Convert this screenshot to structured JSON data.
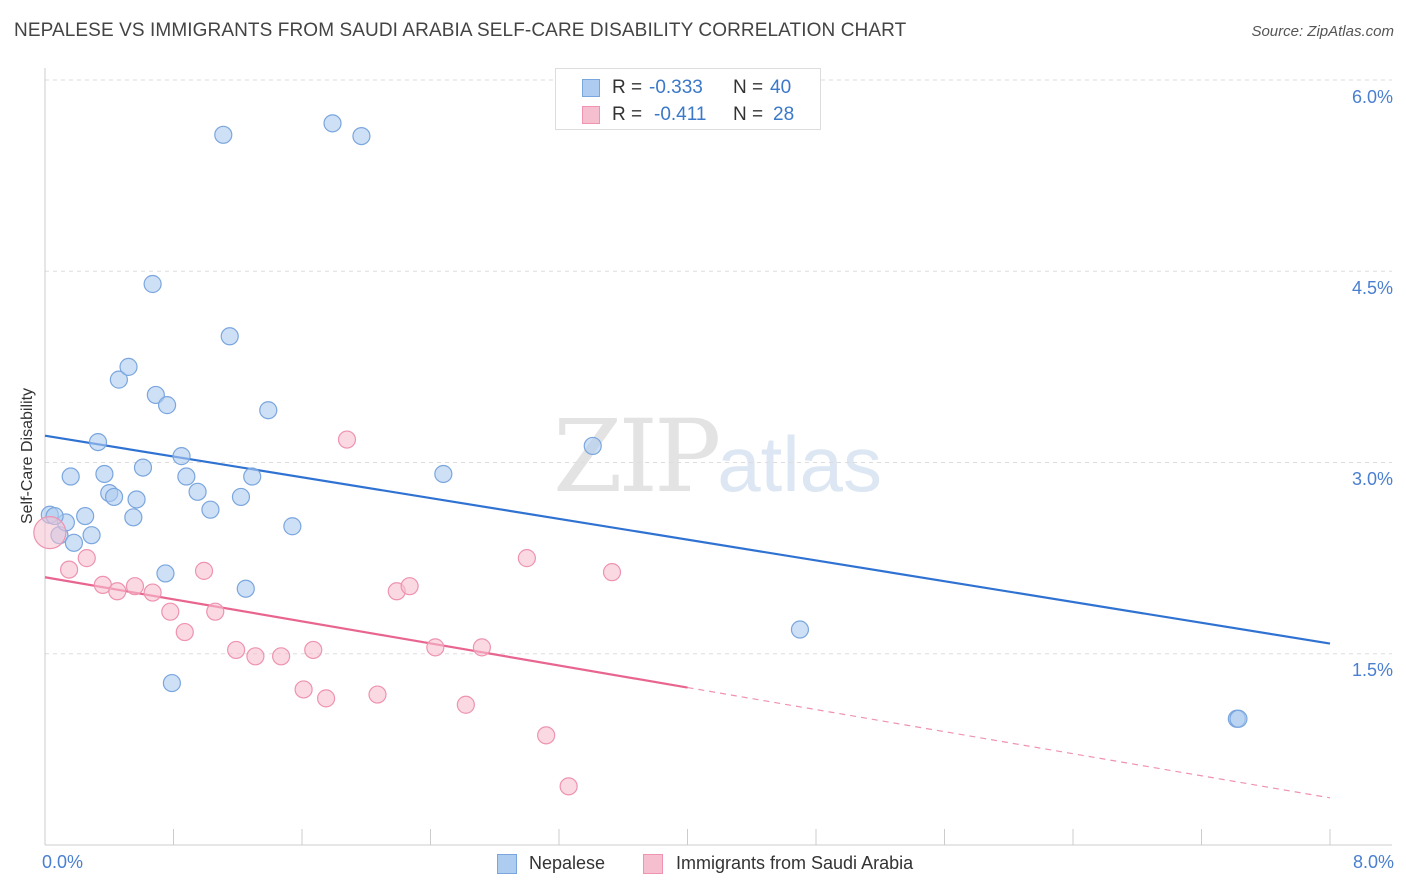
{
  "title": "NEPALESE VS IMMIGRANTS FROM SAUDI ARABIA SELF-CARE DISABILITY CORRELATION CHART",
  "source": "Source: ZipAtlas.com",
  "watermark": {
    "zip": "ZIP",
    "atlas": "atlas"
  },
  "legend": {
    "r_label": "R =",
    "n_label": "N =",
    "series1": {
      "r": "-0.333",
      "n": "40"
    },
    "series2": {
      "r": "-0.411",
      "n": "28"
    }
  },
  "colors": {
    "blue_fill": "#aecbf0",
    "blue_stroke": "#7aa6de",
    "blue_line": "#2f72d2",
    "pink_fill": "#f6bfd0",
    "pink_stroke": "#ee93b0",
    "pink_line": "#e8658f",
    "tick_text": "#4a7fd0",
    "grid": "#dddddd"
  },
  "chart_data": {
    "type": "scatter",
    "title": "NEPALESE VS IMMIGRANTS FROM SAUDI ARABIA SELF-CARE DISABILITY CORRELATION CHART",
    "xlabel": "",
    "ylabel": "Self-Care Disability",
    "xlim": [
      0,
      8
    ],
    "ylim": [
      0,
      6.2
    ],
    "x_tick_labels": [
      "0.0%",
      "8.0%"
    ],
    "y_ticks": [
      1.5,
      3.0,
      4.5,
      6.0
    ],
    "y_tick_labels": [
      "1.5%",
      "3.0%",
      "4.5%",
      "6.0%"
    ],
    "grid": true,
    "legend_position": "top-center",
    "series": [
      {
        "name": "Nepalese",
        "r": -0.333,
        "n": 40,
        "trend": {
          "x": [
            0,
            8
          ],
          "y": [
            3.21,
            1.58
          ],
          "solid_until": 8
        },
        "points": [
          [
            0.03,
            2.59
          ],
          [
            0.09,
            2.43
          ],
          [
            0.13,
            2.53
          ],
          [
            0.18,
            2.37
          ],
          [
            0.25,
            2.58
          ],
          [
            0.29,
            2.43
          ],
          [
            0.33,
            3.16
          ],
          [
            0.16,
            2.89
          ],
          [
            0.37,
            2.91
          ],
          [
            0.4,
            2.76
          ],
          [
            0.43,
            2.73
          ],
          [
            0.46,
            3.65
          ],
          [
            0.52,
            3.75
          ],
          [
            0.55,
            2.57
          ],
          [
            0.57,
            2.71
          ],
          [
            0.61,
            2.96
          ],
          [
            0.67,
            4.4
          ],
          [
            0.69,
            3.53
          ],
          [
            0.76,
            3.45
          ],
          [
            0.75,
            2.13
          ],
          [
            0.79,
            1.27
          ],
          [
            0.85,
            3.05
          ],
          [
            0.88,
            2.89
          ],
          [
            0.95,
            2.77
          ],
          [
            1.03,
            2.63
          ],
          [
            1.11,
            5.57
          ],
          [
            1.15,
            3.99
          ],
          [
            1.22,
            2.73
          ],
          [
            1.25,
            2.01
          ],
          [
            1.29,
            2.89
          ],
          [
            1.39,
            3.41
          ],
          [
            1.54,
            2.5
          ],
          [
            1.79,
            5.66
          ],
          [
            1.97,
            5.56
          ],
          [
            2.48,
            2.91
          ],
          [
            3.41,
            3.13
          ],
          [
            4.7,
            1.69
          ],
          [
            7.42,
            0.99
          ],
          [
            7.43,
            0.99
          ],
          [
            0.06,
            2.58
          ]
        ]
      },
      {
        "name": "Immigrants from Saudi Arabia",
        "r": -0.411,
        "n": 28,
        "trend": {
          "x": [
            0,
            8
          ],
          "y": [
            2.1,
            0.37
          ],
          "solid_until": 4.0
        },
        "points": [
          [
            0.03,
            2.45
          ],
          [
            0.15,
            2.16
          ],
          [
            0.26,
            2.25
          ],
          [
            0.36,
            2.04
          ],
          [
            0.45,
            1.99
          ],
          [
            0.56,
            2.03
          ],
          [
            0.67,
            1.98
          ],
          [
            0.78,
            1.83
          ],
          [
            0.87,
            1.67
          ],
          [
            0.99,
            2.15
          ],
          [
            1.06,
            1.83
          ],
          [
            1.19,
            1.53
          ],
          [
            1.31,
            1.48
          ],
          [
            1.47,
            1.48
          ],
          [
            1.61,
            1.22
          ],
          [
            1.67,
            1.53
          ],
          [
            1.75,
            1.15
          ],
          [
            1.88,
            3.18
          ],
          [
            2.07,
            1.18
          ],
          [
            2.19,
            1.99
          ],
          [
            2.27,
            2.03
          ],
          [
            2.43,
            1.55
          ],
          [
            2.62,
            1.1
          ],
          [
            2.72,
            1.55
          ],
          [
            3.0,
            2.25
          ],
          [
            3.12,
            0.86
          ],
          [
            3.26,
            0.46
          ],
          [
            3.53,
            2.14
          ]
        ]
      }
    ]
  },
  "bottom_legend": {
    "series1": "Nepalese",
    "series2": "Immigrants from Saudi Arabia"
  }
}
